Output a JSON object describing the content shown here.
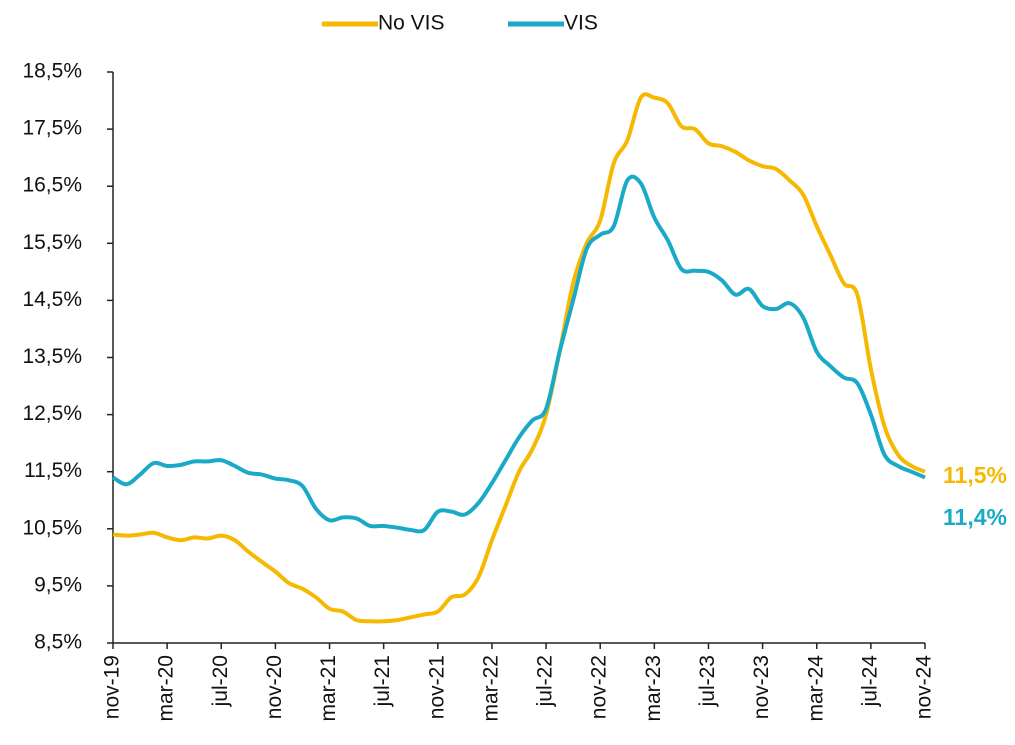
{
  "chart_data": {
    "type": "line",
    "categories": [
      "nov-19",
      null,
      null,
      null,
      "mar-20",
      null,
      null,
      null,
      "jul-20",
      null,
      null,
      null,
      "nov-20",
      null,
      null,
      null,
      "mar-21",
      null,
      null,
      null,
      "jul-21",
      null,
      null,
      null,
      "nov-21",
      null,
      null,
      null,
      "mar-22",
      null,
      null,
      null,
      "jul-22",
      null,
      null,
      null,
      "nov-22",
      null,
      null,
      null,
      "mar-23",
      null,
      null,
      null,
      "jul-23",
      null,
      null,
      null,
      "nov-23",
      null,
      null,
      null,
      "mar-24",
      null,
      null,
      null,
      "jul-24",
      null,
      null,
      null,
      "nov-24"
    ],
    "series": [
      {
        "name": "No VIS",
        "color": "#f6b800",
        "values": [
          10.4,
          10.38,
          10.4,
          10.43,
          10.35,
          10.3,
          10.35,
          10.33,
          10.38,
          10.3,
          10.1,
          9.92,
          9.75,
          9.55,
          9.45,
          9.3,
          9.1,
          9.05,
          8.9,
          8.88,
          8.88,
          8.9,
          8.95,
          9.0,
          9.05,
          9.3,
          9.35,
          9.65,
          10.3,
          10.9,
          11.5,
          11.9,
          12.5,
          13.6,
          14.8,
          15.5,
          15.9,
          16.9,
          17.3,
          18.05,
          18.05,
          17.95,
          17.55,
          17.5,
          17.25,
          17.2,
          17.1,
          16.95,
          16.85,
          16.8,
          16.6,
          16.35,
          15.8,
          15.3,
          14.8,
          14.6,
          13.3,
          12.3,
          11.8,
          11.6,
          11.5
        ],
        "value_labels": [
          null,
          null,
          null,
          null,
          null,
          null,
          null,
          null,
          null,
          null,
          null,
          null,
          null,
          null,
          null,
          null,
          null,
          null,
          null,
          null,
          null,
          null,
          null,
          null,
          null,
          null,
          null,
          null,
          null,
          null,
          null,
          null,
          null,
          null,
          null,
          null,
          null,
          null,
          null,
          null,
          null,
          null,
          null,
          null,
          null,
          null,
          null,
          null,
          null,
          null,
          null,
          null,
          null,
          null,
          null,
          null,
          null,
          null,
          null,
          null,
          "11,5%"
        ]
      },
      {
        "name": "VIS",
        "color": "#1aaac8",
        "values": [
          11.4,
          11.28,
          11.45,
          11.65,
          11.6,
          11.62,
          11.68,
          11.68,
          11.7,
          11.6,
          11.48,
          11.45,
          11.38,
          11.35,
          11.25,
          10.85,
          10.65,
          10.7,
          10.68,
          10.55,
          10.55,
          10.52,
          10.48,
          10.48,
          10.8,
          10.8,
          10.75,
          10.95,
          11.3,
          11.7,
          12.1,
          12.4,
          12.6,
          13.6,
          14.5,
          15.4,
          15.65,
          15.8,
          16.6,
          16.55,
          15.95,
          15.55,
          15.05,
          15.02,
          15.0,
          14.85,
          14.6,
          14.7,
          14.4,
          14.35,
          14.45,
          14.2,
          13.6,
          13.35,
          13.15,
          13.05,
          12.5,
          11.8,
          11.6,
          11.5,
          11.4
        ],
        "value_labels": [
          null,
          null,
          null,
          null,
          null,
          null,
          null,
          null,
          null,
          null,
          null,
          null,
          null,
          null,
          null,
          null,
          null,
          null,
          null,
          null,
          null,
          null,
          null,
          null,
          null,
          null,
          null,
          null,
          null,
          null,
          null,
          null,
          null,
          null,
          null,
          null,
          null,
          null,
          null,
          null,
          null,
          null,
          null,
          null,
          null,
          null,
          null,
          null,
          null,
          null,
          null,
          null,
          null,
          null,
          null,
          null,
          null,
          null,
          null,
          null,
          "11,4%"
        ]
      }
    ],
    "ylim": [
      8.5,
      18.5
    ],
    "yticks": [
      {
        "value": 8.5,
        "label": "8,5%"
      },
      {
        "value": 9.5,
        "label": "9,5%"
      },
      {
        "value": 10.5,
        "label": "10,5%"
      },
      {
        "value": 11.5,
        "label": "11,5%"
      },
      {
        "value": 12.5,
        "label": "12,5%"
      },
      {
        "value": 13.5,
        "label": "13,5%"
      },
      {
        "value": 14.5,
        "label": "14,5%"
      },
      {
        "value": 15.5,
        "label": "15,5%"
      },
      {
        "value": 16.5,
        "label": "16,5%"
      },
      {
        "value": 17.5,
        "label": "17,5%"
      },
      {
        "value": 18.5,
        "label": "18,5%"
      }
    ],
    "legend": "top",
    "grid": false
  }
}
